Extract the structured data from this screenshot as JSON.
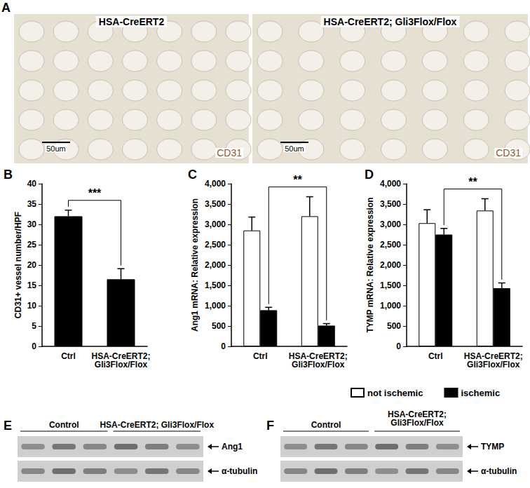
{
  "panels": {
    "A": {
      "label": "A",
      "images": [
        {
          "title": "HSA-CreERT2",
          "scale_bar": "50um",
          "stain": "CD31"
        },
        {
          "title": "HSA-CreERT2; Gli3Flox/Flox",
          "scale_bar": "50um",
          "stain": "CD31"
        }
      ]
    },
    "E": {
      "label": "E",
      "groups": [
        "Control",
        "HSA-CreERT2; Gli3Flox/Flox"
      ],
      "bands": [
        "Ang1",
        "α-tubulin"
      ]
    },
    "F": {
      "label": "F",
      "groups": [
        "Control",
        "HSA-CreERT2; Gli3Flox/Flox"
      ],
      "bands": [
        "TYMP",
        "α-tubulin"
      ]
    }
  },
  "chart_data": [
    {
      "panel": "B",
      "type": "bar",
      "ylabel": "CD31+ vessel number/HPF",
      "categories": [
        "Ctrl",
        "HSA-CreERT2; Gli3Flox/Flox"
      ],
      "values": [
        32,
        16.5
      ],
      "errors": [
        1.5,
        2.6
      ],
      "color": "#000000",
      "ylim": [
        0,
        40
      ],
      "yticks": [
        0,
        5,
        10,
        15,
        20,
        25,
        30,
        35,
        40
      ],
      "grid": false,
      "annotations": [
        {
          "text": "***",
          "from": "Ctrl",
          "to": "HSA-CreERT2; Gli3Flox/Flox"
        }
      ]
    },
    {
      "panel": "C",
      "type": "bar",
      "ylabel": "Ang1 mRNA: Relative expression",
      "categories": [
        "Ctrl",
        "HSA-CreERT2; Gli3Flox/Flox"
      ],
      "series": [
        {
          "name": "not ischemic",
          "color": "#ffffff",
          "values": [
            2850,
            3200
          ],
          "errors": [
            330,
            480
          ]
        },
        {
          "name": "ischemic",
          "color": "#000000",
          "values": [
            890,
            510
          ],
          "errors": [
            70,
            50
          ]
        }
      ],
      "ylim": [
        0,
        4000
      ],
      "yticks": [
        0,
        500,
        1000,
        1500,
        2000,
        2500,
        3000,
        3500,
        4000
      ],
      "grid": false,
      "annotations": [
        {
          "text": "**",
          "from": {
            "category": "Ctrl",
            "series": "ischemic"
          },
          "to": {
            "category": "HSA-CreERT2; Gli3Flox/Flox",
            "series": "ischemic"
          }
        }
      ]
    },
    {
      "panel": "D",
      "type": "bar",
      "ylabel": "TYMP mRNA: Relative expression",
      "categories": [
        "Ctrl",
        "HSA-CreERT2; Gli3Flox/Flox"
      ],
      "series": [
        {
          "name": "not ischemic",
          "color": "#ffffff",
          "values": [
            3030,
            3340
          ],
          "errors": [
            330,
            290
          ]
        },
        {
          "name": "ischemic",
          "color": "#000000",
          "values": [
            2750,
            1430
          ],
          "errors": [
            150,
            130
          ]
        }
      ],
      "ylim": [
        0,
        4000
      ],
      "yticks": [
        0,
        500,
        1000,
        1500,
        2000,
        2500,
        3000,
        3500,
        4000
      ],
      "grid": false,
      "legend": "bottom",
      "annotations": [
        {
          "text": "**",
          "from": {
            "category": "Ctrl",
            "series": "ischemic"
          },
          "to": {
            "category": "HSA-CreERT2; Gli3Flox/Flox",
            "series": "ischemic"
          }
        }
      ]
    }
  ]
}
